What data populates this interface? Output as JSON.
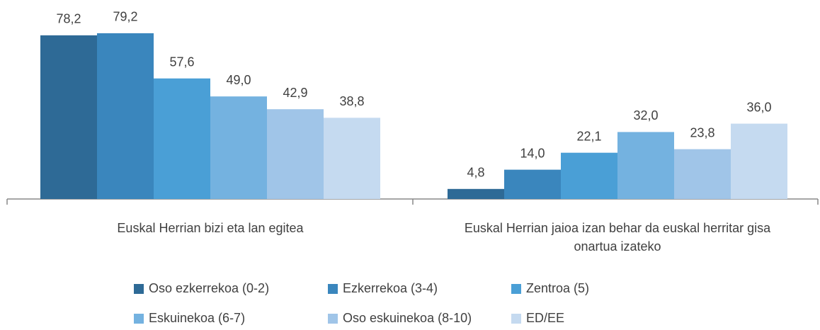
{
  "chart_data": {
    "type": "bar",
    "categories": [
      "Euskal Herrian bizi eta lan egitea",
      "Euskal Herrian jaioa izan behar da euskal herritar gisa onartua izateko"
    ],
    "series": [
      {
        "name": "Oso ezkerrekoa (0-2)",
        "color": "#2e6a96",
        "values": [
          78.2,
          4.8
        ],
        "value_labels": [
          "78,2",
          "4,8"
        ]
      },
      {
        "name": "Ezkerrekoa (3-4)",
        "color": "#3a86bd",
        "values": [
          79.2,
          14
        ],
        "value_labels": [
          "79,2",
          "14,0"
        ]
      },
      {
        "name": "Zentroa (5)",
        "color": "#4a9fd6",
        "values": [
          57.6,
          22.1
        ],
        "value_labels": [
          "57,6",
          "22,1"
        ]
      },
      {
        "name": "Eskuinekoa (6-7)",
        "color": "#74b2e0",
        "values": [
          49,
          32
        ],
        "value_labels": [
          "49,0",
          "32,0"
        ]
      },
      {
        "name": "Oso eskuinekoa (8-10)",
        "color": "#a0c5e8",
        "values": [
          42.9,
          23.8
        ],
        "value_labels": [
          "42,9",
          "23,8"
        ]
      },
      {
        "name": "ED/EE",
        "color": "#c5daf0",
        "values": [
          38.8,
          36
        ],
        "value_labels": [
          "38,8",
          "36,0"
        ]
      }
    ],
    "ylim": [
      0,
      90
    ]
  }
}
